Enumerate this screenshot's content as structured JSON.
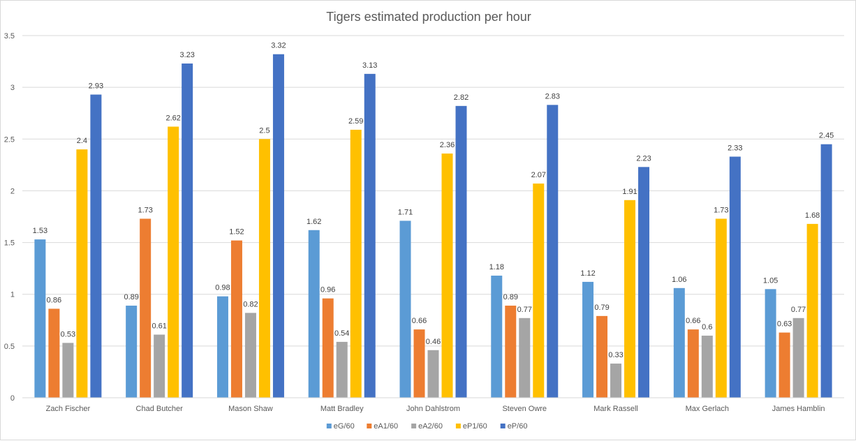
{
  "chart_data": {
    "type": "bar",
    "title": "Tigers estimated production per hour",
    "xlabel": "",
    "ylabel": "",
    "ylim": [
      0,
      3.5
    ],
    "yticks": [
      "0",
      "0.5",
      "1",
      "1.5",
      "2",
      "2.5",
      "3",
      "3.5"
    ],
    "ytick_values": [
      0,
      0.5,
      1,
      1.5,
      2,
      2.5,
      3,
      3.5
    ],
    "grid": true,
    "legend_position": "bottom",
    "categories": [
      "Zach Fischer",
      "Chad Butcher",
      "Mason Shaw",
      "Matt Bradley",
      "John Dahlstrom",
      "Steven Owre",
      "Mark Rassell",
      "Max Gerlach",
      "James Hamblin"
    ],
    "series": [
      {
        "name": "eG/60",
        "color": "#5b9bd5",
        "values": [
          1.53,
          0.89,
          0.98,
          1.62,
          1.71,
          1.18,
          1.12,
          1.06,
          1.05
        ]
      },
      {
        "name": "eA1/60",
        "color": "#ed7d31",
        "values": [
          0.86,
          1.73,
          1.52,
          0.96,
          0.66,
          0.89,
          0.79,
          0.66,
          0.63
        ]
      },
      {
        "name": "eA2/60",
        "color": "#a5a5a5",
        "values": [
          0.53,
          0.61,
          0.82,
          0.54,
          0.46,
          0.77,
          0.33,
          0.6,
          0.77
        ]
      },
      {
        "name": "eP1/60",
        "color": "#ffc000",
        "values": [
          2.4,
          2.62,
          2.5,
          2.59,
          2.36,
          2.07,
          1.91,
          1.73,
          1.68
        ]
      },
      {
        "name": "eP/60",
        "color": "#4472c4",
        "values": [
          2.93,
          3.23,
          3.32,
          3.13,
          2.82,
          2.83,
          2.23,
          2.33,
          2.45
        ]
      }
    ]
  }
}
